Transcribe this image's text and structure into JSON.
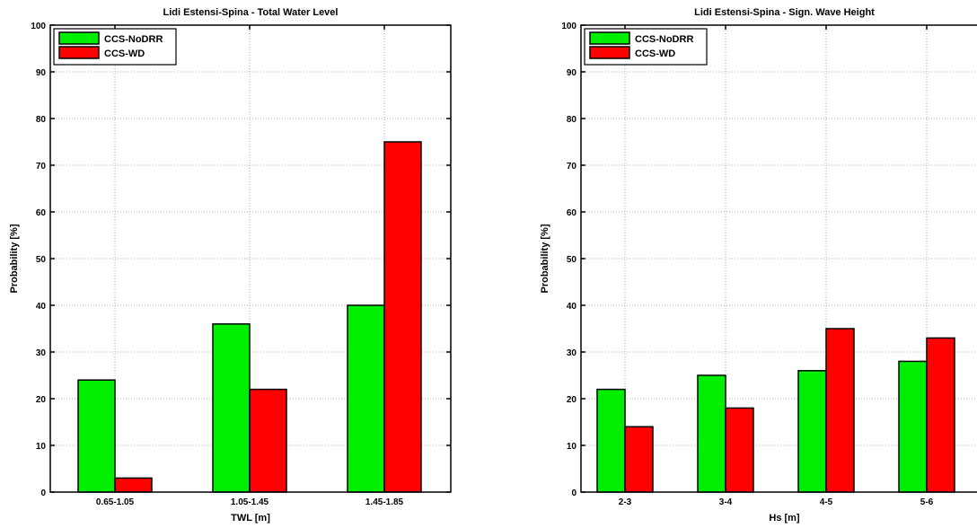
{
  "colors": {
    "nodrr": "#00ee00",
    "wd": "#ff0000",
    "grid": "#9a9a9a"
  },
  "chart_data": [
    {
      "type": "bar",
      "title": "Lidi Estensi-Spina - Total Water Level",
      "xlabel": "TWL [m]",
      "ylabel": "Probability [%]",
      "ylim": [
        0,
        100
      ],
      "yticks": [
        0,
        10,
        20,
        30,
        40,
        50,
        60,
        70,
        80,
        90,
        100
      ],
      "grid": true,
      "legend_position": "top-left",
      "categories": [
        "0.65-1.05",
        "1.05-1.45",
        "1.45-1.85"
      ],
      "series": [
        {
          "name": "CCS-NoDRR",
          "values": [
            24,
            36,
            40
          ]
        },
        {
          "name": "CCS-WD",
          "values": [
            3,
            22,
            75
          ]
        }
      ]
    },
    {
      "type": "bar",
      "title": "Lidi Estensi-Spina - Sign. Wave Height",
      "xlabel": "Hs [m]",
      "ylabel": "Probability [%]",
      "ylim": [
        0,
        100
      ],
      "yticks": [
        0,
        10,
        20,
        30,
        40,
        50,
        60,
        70,
        80,
        90,
        100
      ],
      "grid": true,
      "legend_position": "top-left",
      "categories": [
        "2-3",
        "3-4",
        "4-5",
        "5-6"
      ],
      "series": [
        {
          "name": "CCS-NoDRR",
          "values": [
            22,
            25,
            26,
            28
          ]
        },
        {
          "name": "CCS-WD",
          "values": [
            14,
            18,
            35,
            33
          ]
        }
      ]
    }
  ]
}
